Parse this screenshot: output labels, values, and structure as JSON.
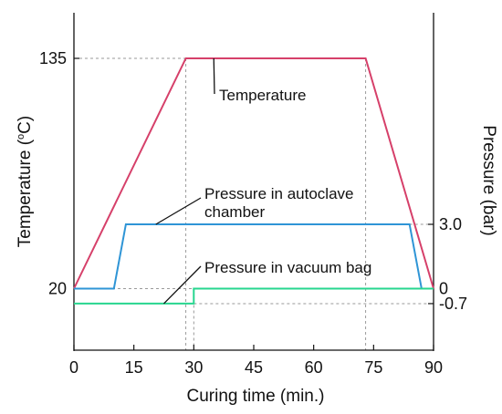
{
  "chart_data": {
    "type": "line",
    "xlabel": "Curing time (min.)",
    "x_ticks": [
      "0",
      "15",
      "30",
      "45",
      "60",
      "75",
      "90"
    ],
    "xlim": [
      0,
      90
    ],
    "left_axis": {
      "label_prefix": "Temperature (",
      "label_unit": "C",
      "label_degree": "o",
      "label_suffix": ")",
      "ticks": [
        "20",
        "135"
      ],
      "range": [
        0,
        165
      ]
    },
    "right_axis": {
      "label": "Pressure (bar)",
      "ticks": [
        "3.0",
        "0",
        "-0.7"
      ]
    },
    "series": [
      {
        "axis": "left",
        "color": "#d6406a",
        "x": [
          0,
          28,
          73,
          90
        ],
        "y": [
          20,
          135,
          135,
          20
        ]
      },
      {
        "axis": "right",
        "color": "#2f95d6",
        "x": [
          0,
          10,
          13,
          84,
          87,
          90
        ],
        "y": [
          0,
          0,
          3.0,
          3.0,
          0,
          0
        ]
      },
      {
        "axis": "right",
        "color": "#27d68f",
        "x": [
          0,
          30,
          30,
          90
        ],
        "y": [
          -0.7,
          -0.7,
          0,
          0
        ]
      }
    ],
    "annotations": [
      {
        "lines": [
          "Temperature"
        ],
        "leader_color": "#111111"
      },
      {
        "lines": [
          "Pressure in autoclave",
          "chamber"
        ],
        "leader_color": "#111111"
      },
      {
        "lines": [
          "Pressure in vacuum bag"
        ],
        "leader_color": "#111111"
      }
    ],
    "guides": "dashed-gray"
  }
}
